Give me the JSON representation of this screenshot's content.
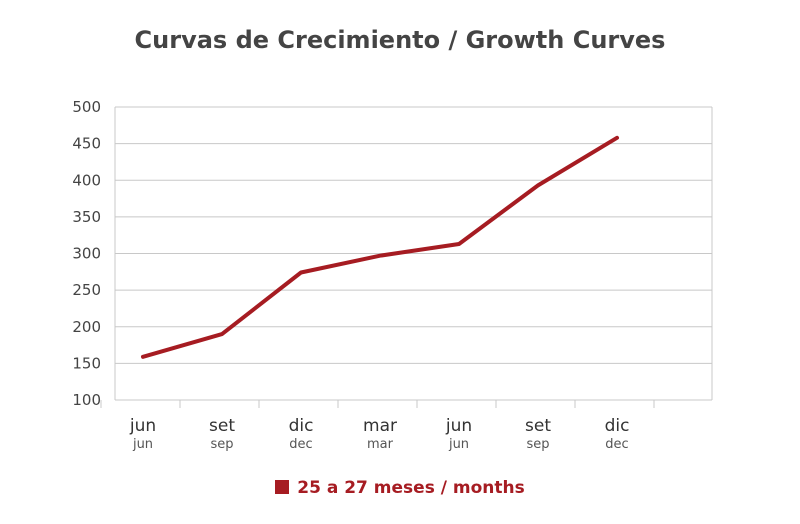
{
  "chart_data": {
    "type": "line",
    "title": "Curvas de Crecimiento / Growth Curves",
    "categories": [
      {
        "main": "jun",
        "sub": "jun"
      },
      {
        "main": "set",
        "sub": "sep"
      },
      {
        "main": "dic",
        "sub": "dec"
      },
      {
        "main": "mar",
        "sub": "mar"
      },
      {
        "main": "jun",
        "sub": "jun"
      },
      {
        "main": "set",
        "sub": "sep"
      },
      {
        "main": "dic",
        "sub": "dec"
      }
    ],
    "ylim": [
      100,
      500
    ],
    "yticks": [
      "100",
      "150",
      "200",
      "250",
      "300",
      "350",
      "400",
      "450",
      "500"
    ],
    "grid": true,
    "legend_position": "bottom-center",
    "series": [
      {
        "name": "25 a 27 meses / months",
        "color": "#a61c22",
        "values": [
          159,
          190,
          274,
          297,
          313,
          393,
          458
        ]
      }
    ]
  },
  "colors": {
    "grid": "#c8c8c8",
    "axis_text": "#444444",
    "title_text": "#444444"
  }
}
